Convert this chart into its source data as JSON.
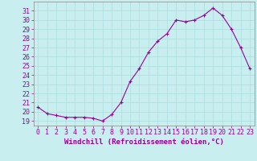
{
  "x": [
    0,
    1,
    2,
    3,
    4,
    5,
    6,
    7,
    8,
    9,
    10,
    11,
    12,
    13,
    14,
    15,
    16,
    17,
    18,
    19,
    20,
    21,
    22,
    23
  ],
  "y": [
    20.5,
    19.8,
    19.6,
    19.4,
    19.4,
    19.4,
    19.3,
    19.0,
    19.7,
    21.0,
    23.3,
    24.7,
    26.5,
    27.7,
    28.5,
    30.0,
    29.8,
    30.0,
    30.5,
    31.3,
    30.5,
    29.0,
    27.0,
    24.7
  ],
  "xlabel": "Windchill (Refroidissement éolien,°C)",
  "xtick_labels": [
    "0",
    "1",
    "2",
    "3",
    "4",
    "5",
    "6",
    "7",
    "8",
    "9",
    "10",
    "11",
    "12",
    "13",
    "14",
    "15",
    "16",
    "17",
    "18",
    "19",
    "20",
    "21",
    "22",
    "23"
  ],
  "ytick_labels": [
    "19",
    "20",
    "21",
    "22",
    "23",
    "24",
    "25",
    "26",
    "27",
    "28",
    "29",
    "30",
    "31"
  ],
  "ylim": [
    18.5,
    32.0
  ],
  "xlim": [
    -0.5,
    23.5
  ],
  "line_color": "#990099",
  "marker": "+",
  "bg_color": "#c8eef0",
  "grid_color": "#aadddd",
  "tick_label_color": "#990099",
  "xlabel_color": "#990099",
  "xlabel_fontsize": 6.5,
  "tick_fontsize": 6.0,
  "ylabel_ticks": [
    19,
    20,
    21,
    22,
    23,
    24,
    25,
    26,
    27,
    28,
    29,
    30,
    31
  ]
}
